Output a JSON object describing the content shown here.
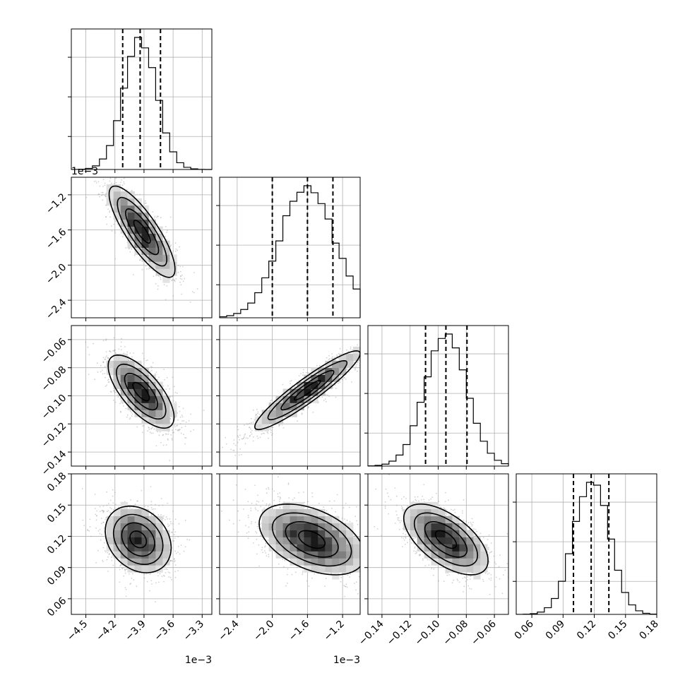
{
  "chart_data": {
    "type": "corner",
    "grid": true,
    "offsets": {
      "p0": "1e−3",
      "p1": "1e−3"
    },
    "params": [
      {
        "id": "p0",
        "range": [
          -4.65,
          -3.2
        ],
        "ticks": [
          -4.5,
          -4.2,
          -3.9,
          -3.6,
          -3.3
        ],
        "tick_labels": [
          "−4.5",
          "−4.2",
          "−3.9",
          "−3.6",
          "−3.3"
        ]
      },
      {
        "id": "p1",
        "range": [
          -2.6,
          -1.0
        ],
        "ticks": [
          -2.4,
          -2.0,
          -1.6,
          -1.2
        ],
        "tick_labels": [
          "−2.4",
          "−2.0",
          "−1.6",
          "−1.2"
        ]
      },
      {
        "id": "p2",
        "range": [
          -0.15,
          -0.05
        ],
        "ticks": [
          -0.14,
          -0.12,
          -0.1,
          -0.08,
          -0.06
        ],
        "tick_labels": [
          "−0.14",
          "−0.12",
          "−0.10",
          "−0.08",
          "−0.06"
        ]
      },
      {
        "id": "p3",
        "range": [
          0.045,
          0.18
        ],
        "ticks": [
          0.06,
          0.09,
          0.12,
          0.15,
          0.18
        ],
        "tick_labels": [
          "0.06",
          "0.09",
          "0.12",
          "0.15",
          "0.18"
        ]
      }
    ],
    "histograms": [
      {
        "param": "p0",
        "quantiles": [
          -4.12,
          -3.94,
          -3.73
        ],
        "mean": -3.94,
        "sd": 0.17,
        "skew": 0.0
      },
      {
        "param": "p1",
        "quantiles": [
          -2.0,
          -1.6,
          -1.31
        ],
        "mean": -1.55,
        "sd": 0.32,
        "skew": -0.6
      },
      {
        "param": "p2",
        "quantiles": [
          -0.109,
          -0.0945,
          -0.0795
        ],
        "mean": -0.0945,
        "sd": 0.0148,
        "skew": 0.0
      },
      {
        "param": "p3",
        "quantiles": [
          0.1,
          0.117,
          0.134
        ],
        "mean": 0.117,
        "sd": 0.017,
        "skew": 0.1
      }
    ],
    "pairs": [
      {
        "x": "p0",
        "y": "p1",
        "mx": -3.92,
        "my": -1.62,
        "sx": 0.17,
        "sy": 0.26,
        "rho": -0.82
      },
      {
        "x": "p0",
        "y": "p2",
        "mx": -3.93,
        "my": -0.097,
        "sx": 0.17,
        "sy": 0.013,
        "rho": -0.7
      },
      {
        "x": "p1",
        "y": "p2",
        "mx": -1.6,
        "my": -0.096,
        "sx": 0.3,
        "sy": 0.014,
        "rho": 0.93
      },
      {
        "x": "p0",
        "y": "p3",
        "mx": -3.96,
        "my": 0.117,
        "sx": 0.17,
        "sy": 0.016,
        "rho": -0.25
      },
      {
        "x": "p1",
        "y": "p3",
        "mx": -1.55,
        "my": 0.117,
        "sx": 0.3,
        "sy": 0.017,
        "rho": -0.45
      },
      {
        "x": "p2",
        "y": "p3",
        "mx": -0.0945,
        "my": 0.117,
        "sx": 0.015,
        "sy": 0.017,
        "rho": -0.6
      }
    ]
  }
}
